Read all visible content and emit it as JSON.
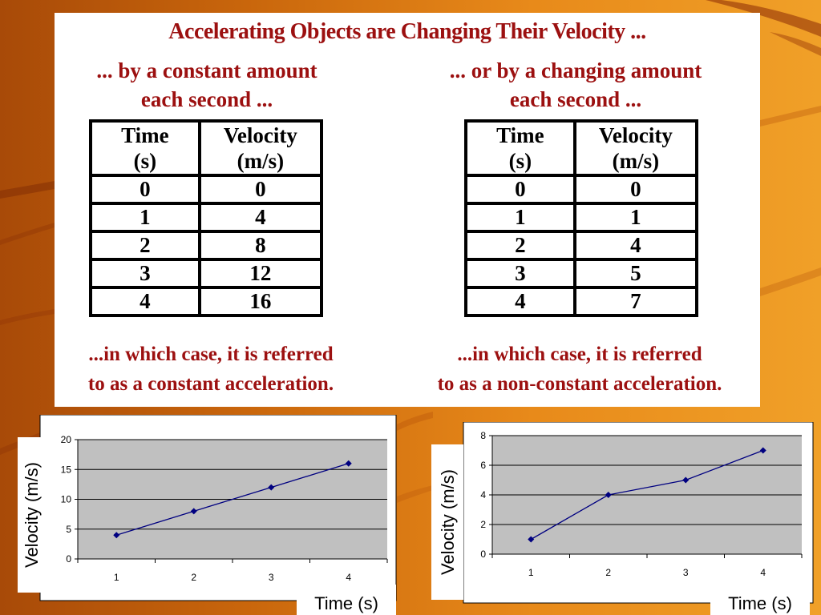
{
  "slide": {
    "title": "Accelerating Objects are Changing Their Velocity ...",
    "left": {
      "header": [
        "... by a constant amount",
        "each second ..."
      ],
      "footer": [
        "...in which case, it is referred",
        "to as a constant acceleration."
      ],
      "table": {
        "headers": [
          [
            "Time",
            "(s)"
          ],
          [
            "Velocity",
            "(m/s)"
          ]
        ],
        "rows": [
          [
            "0",
            "0"
          ],
          [
            "1",
            "4"
          ],
          [
            "2",
            "8"
          ],
          [
            "3",
            "12"
          ],
          [
            "4",
            "16"
          ]
        ]
      }
    },
    "right": {
      "header": [
        "... or by a changing amount",
        "each second ..."
      ],
      "footer": [
        "...in which case, it is referred",
        "to as a non-constant acceleration."
      ],
      "table": {
        "headers": [
          [
            "Time",
            "(s)"
          ],
          [
            "Velocity",
            "(m/s)"
          ]
        ],
        "rows": [
          [
            "0",
            "0"
          ],
          [
            "1",
            "1"
          ],
          [
            "2",
            "4"
          ],
          [
            "3",
            "5"
          ],
          [
            "4",
            "7"
          ]
        ]
      }
    }
  },
  "colors": {
    "title_text": "#9c1010",
    "plot_area": "#c0c0c0",
    "series_line": "#000080",
    "gridline": "#000000"
  },
  "chart_data": [
    {
      "type": "line",
      "categories": [
        "1",
        "2",
        "3",
        "4"
      ],
      "series": [
        {
          "values": [
            4,
            8,
            12,
            16
          ]
        }
      ],
      "xlabel": "Time (s)",
      "ylabel": "Velocity (m/s)",
      "ylim": [
        0,
        20
      ],
      "yticks": [
        0,
        5,
        10,
        15,
        20
      ],
      "grid": true,
      "marker": "diamond"
    },
    {
      "type": "line",
      "categories": [
        "1",
        "2",
        "3",
        "4"
      ],
      "series": [
        {
          "values": [
            1,
            4,
            5,
            7
          ]
        }
      ],
      "xlabel": "Time (s)",
      "ylabel": "Velocity (m/s)",
      "ylim": [
        0,
        8
      ],
      "yticks": [
        0,
        2,
        4,
        6,
        8
      ],
      "grid": true,
      "marker": "diamond"
    }
  ]
}
